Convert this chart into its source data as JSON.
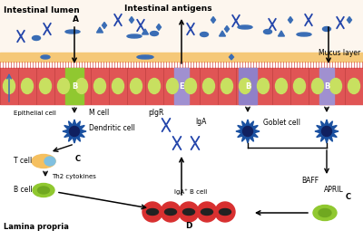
{
  "bg_color": "#ffffff",
  "lumen_label": "Intestinal lumen",
  "antigens_label": "Intestinal antigens",
  "mucus_label": "Mucus layer",
  "epithelial_label": "Epithelial cell",
  "mcell_label": "M cell",
  "dendritic_label": "Dendritic cell",
  "tcell_label": "T cell",
  "bcell_label": "B cell",
  "th2_label": "Th2 cytokines",
  "lamina_label": "Lamina propria",
  "pigr_label": "pIgR",
  "iga_label": "IgA",
  "igab_label": "IgA⁺ B cell",
  "goblet_label": "Goblet cell",
  "baff_label": "BAFF",
  "april_label": "APRIL",
  "label_A": "A",
  "label_B": "B",
  "label_C": "C",
  "label_D": "D",
  "label_E": "E",
  "mucus_color": "#f5c878",
  "cilia_color": "#cc2222",
  "epi_band_color": "#e05555",
  "cell_oval_color": "#c8e060",
  "mcell_green": "#90c830",
  "goblet_purple": "#9080c8",
  "pigr_purple": "#a090d0",
  "blue": "#3a6db5",
  "dark_blue": "#2244aa",
  "spiky_blue": "#1a50a0",
  "spiky_dark": "#102060",
  "tcell_color": "#f5c060",
  "bcell_green": "#90c830",
  "red_cell": "#d83030",
  "red_cell_nucleus": "#222222",
  "lumen_bg": "#fdf6ee"
}
